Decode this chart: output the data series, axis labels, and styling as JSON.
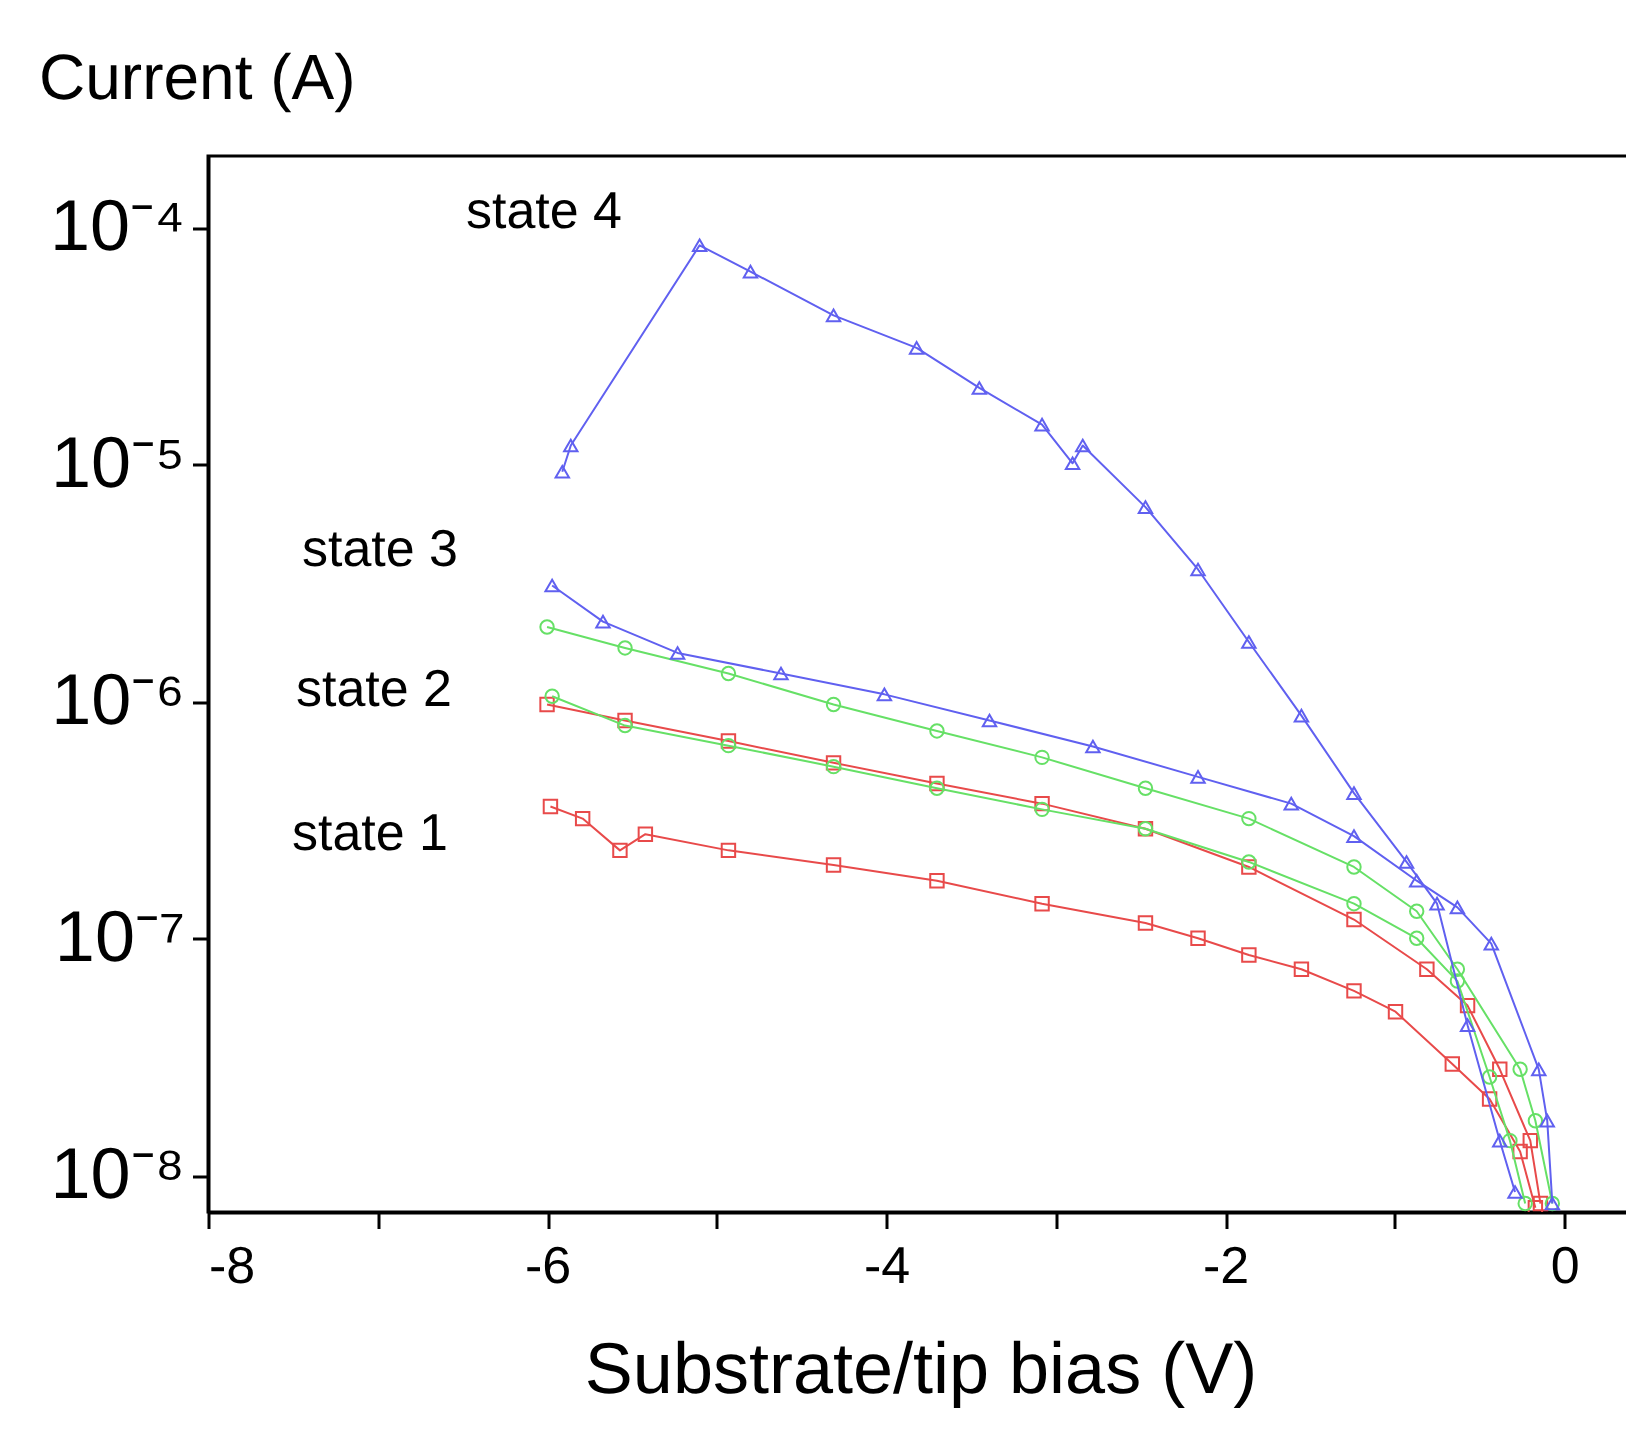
{
  "chart_data": {
    "type": "line",
    "xlabel": "Substrate/tip bias (V)",
    "ylabel": "Current (A)",
    "log": "y",
    "grid": false,
    "line_style": "solid",
    "xlim": [
      -8,
      0.4
    ],
    "xticks": [
      -8,
      {
        "value": -7,
        "label": null
      },
      -6,
      {
        "value": -5,
        "label": null
      },
      -4,
      {
        "value": -3,
        "label": null
      },
      -2,
      {
        "value": -1,
        "label": null
      },
      0
    ],
    "ylim": [
      7e-09,
      0.0002
    ],
    "yticks": [
      {
        "value": 1e-08,
        "label": "10⁻⁸"
      },
      {
        "value": 1e-07,
        "label": "10⁻⁷"
      },
      {
        "value": 1e-06,
        "label": "10⁻⁶"
      },
      {
        "value": 1e-05,
        "label": "10⁻⁵"
      },
      {
        "value": 0.0001,
        "label": "10⁻⁴"
      }
    ],
    "annotations": [
      "state 4",
      "state 3",
      "state 2",
      "state 1"
    ],
    "series": [
      {
        "color": "#e84a4a",
        "marker": "square",
        "x": [
          -5.98,
          -5.79,
          -5.57,
          -5.42,
          -4.93,
          -4.31,
          -3.7,
          -3.08,
          -2.47,
          -2.16,
          -1.86,
          -1.55,
          -1.24,
          -0.995,
          -0.66,
          -0.44,
          -0.26,
          -0.17
        ],
        "values": [
          3.6e-07,
          3.2e-07,
          2.35e-07,
          2.75e-07,
          2.35e-07,
          2.04e-07,
          1.75e-07,
          1.4e-07,
          1.16e-07,
          1e-07,
          8.5e-08,
          7.4e-08,
          6e-08,
          4.9e-08,
          2.95e-08,
          2.1e-08,
          1.26e-08,
          7.3e-09
        ]
      },
      {
        "color": "#e84a4a",
        "marker": "square",
        "x": [
          -6.0,
          -5.54,
          -4.93,
          -4.31,
          -3.7,
          -3.08,
          -2.47,
          -1.86,
          -1.24,
          -0.81,
          -0.57,
          -0.38,
          -0.2,
          -0.14
        ],
        "values": [
          9.7e-07,
          8.3e-07,
          6.8e-07,
          5.5e-07,
          4.5e-07,
          3.7e-07,
          2.9e-07,
          2e-07,
          1.2e-07,
          7.4e-08,
          5.2e-08,
          2.8e-08,
          1.4e-08,
          7.6e-09
        ]
      },
      {
        "color": "#66e066",
        "marker": "circle",
        "x": [
          -5.97,
          -5.54,
          -4.93,
          -4.31,
          -3.7,
          -3.08,
          -2.47,
          -1.86,
          -1.24,
          -0.87,
          -0.63,
          -0.44,
          -0.32,
          -0.23
        ],
        "values": [
          1.05e-06,
          7.9e-07,
          6.5e-07,
          5.3e-07,
          4.3e-07,
          3.5e-07,
          2.9e-07,
          2.1e-07,
          1.4e-07,
          1e-07,
          6.6e-08,
          2.6e-08,
          1.4e-08,
          7.6e-09
        ]
      },
      {
        "color": "#66e066",
        "marker": "circle",
        "x": [
          -6.0,
          -5.54,
          -4.93,
          -4.31,
          -3.7,
          -3.08,
          -2.47,
          -1.86,
          -1.24,
          -0.87,
          -0.63,
          -0.26,
          -0.17,
          -0.07
        ],
        "values": [
          2.06e-06,
          1.68e-06,
          1.31e-06,
          9.7e-07,
          7.5e-07,
          5.8e-07,
          4.3e-07,
          3.2e-07,
          2e-07,
          1.3e-07,
          7.4e-08,
          2.8e-08,
          1.7e-08,
          7.6e-09
        ]
      },
      {
        "color": "#6060f0",
        "marker": "triangle",
        "x": [
          -5.97,
          -5.67,
          -5.23,
          -4.62,
          -4.01,
          -3.39,
          -2.78,
          -2.16,
          -1.61,
          -1.24,
          -0.87,
          -0.63,
          -0.43,
          -0.15,
          -0.1,
          -0.07
        ],
        "values": [
          3.08e-06,
          2.17e-06,
          1.6e-06,
          1.31e-06,
          1.07e-06,
          8.3e-07,
          6.45e-07,
          4.8e-07,
          3.7e-07,
          2.7e-07,
          1.75e-07,
          1.35e-07,
          9.5e-08,
          2.8e-08,
          1.7e-08,
          7.6e-09
        ]
      },
      {
        "color": "#6060f0",
        "marker": "triangle",
        "x": [
          -5.91,
          -5.86,
          -5.1,
          -4.8,
          -4.31,
          -3.82,
          -3.45,
          -3.08,
          -2.9,
          -2.84,
          -2.47,
          -2.16,
          -1.86,
          -1.55,
          -1.24,
          -0.93,
          -0.75,
          -0.57,
          -0.38,
          -0.29
        ],
        "values": [
          9.3e-06,
          1.2e-05,
          8.4e-05,
          6.5e-05,
          4.25e-05,
          3.1e-05,
          2.1e-05,
          1.47e-05,
          1.01e-05,
          1.2e-05,
          6.6e-06,
          3.6e-06,
          1.78e-06,
          8.7e-07,
          4.1e-07,
          2.1e-07,
          1.4e-07,
          4.3e-08,
          1.4e-08,
          8.5e-09
        ]
      }
    ]
  }
}
